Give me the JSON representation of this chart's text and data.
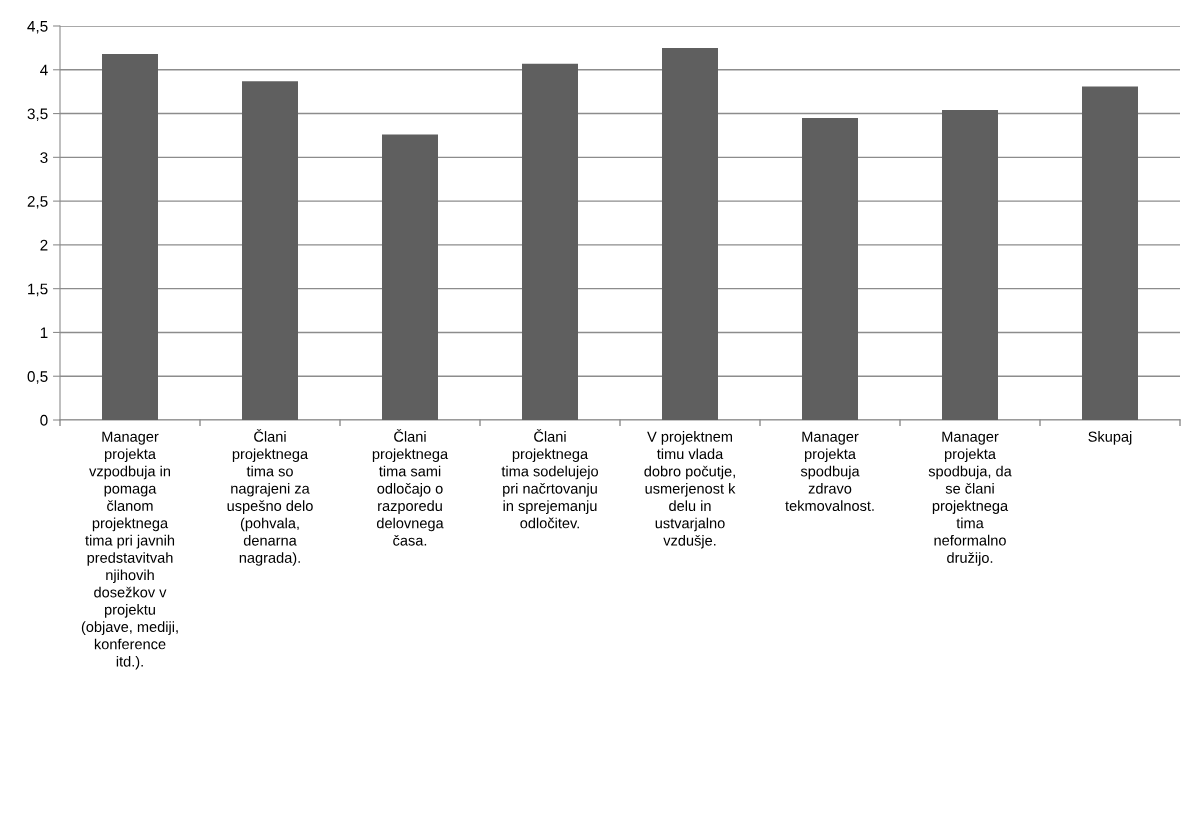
{
  "chart_data": {
    "type": "bar",
    "categories": [
      "Manager\nprojekta\nvzpodbuja in\npomaga\nčlanom\nprojektnega\ntima pri javnih\npredstavitvah\nnjihovih\ndosežkov v\nprojektu\n(objave, mediji,\nkonference\nitd.).",
      "Člani\nprojektnega\ntima so\nnagrajeni za\nuspešno delo\n(pohvala,\ndenarna\nnagrada).",
      "Člani\nprojektnega\ntima sami\nodločajo o\nrazporedu\ndelovnega\nčasa.",
      "Člani\nprojektnega\ntima sodelujejo\npri načrtovanju\nin sprejemanju\nodločitev.",
      "V projektnem\ntimu vlada\ndobro počutje,\nusmerjenost k\ndelu in\nustvarjalno\nvzdušje.",
      "Manager\nprojekta\nspodbuja\nzdravo\ntekmovalnost.",
      "Manager\nprojekta\nspodbuja, da\nse člani\nprojektnega\ntima\nneformalno\ndružijo.",
      "Skupaj"
    ],
    "values": [
      4.18,
      3.87,
      3.26,
      4.07,
      4.25,
      3.45,
      3.54,
      3.81
    ],
    "color": "#5f5f5f",
    "ylim": [
      0,
      4.5
    ],
    "yticks": [
      0,
      {
        "value": 0.5,
        "label": "0,5"
      },
      1,
      {
        "value": 1.5,
        "label": "1,5"
      },
      2,
      {
        "value": 2.5,
        "label": "2,5"
      },
      3,
      {
        "value": 3.5,
        "label": "3,5"
      },
      4,
      {
        "value": 4.5,
        "label": "4,5"
      }
    ],
    "grid": "y",
    "legend": false
  }
}
